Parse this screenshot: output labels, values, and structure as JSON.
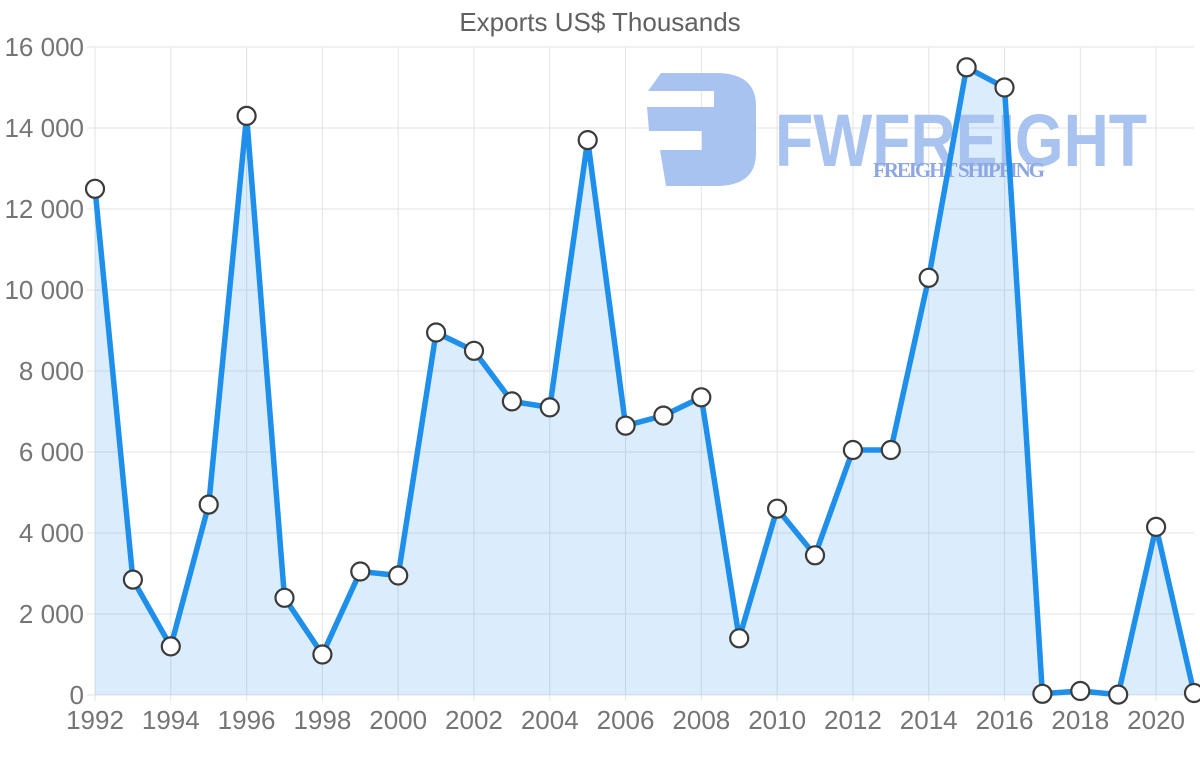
{
  "chart_data": {
    "type": "area",
    "title": "Exports US$ Thousands",
    "series_name": "Exports",
    "x": [
      1992,
      1993,
      1994,
      1995,
      1996,
      1997,
      1998,
      1999,
      2000,
      2001,
      2002,
      2003,
      2004,
      2005,
      2006,
      2007,
      2008,
      2009,
      2010,
      2011,
      2012,
      2013,
      2014,
      2015,
      2016,
      2017,
      2018,
      2019,
      2020,
      2021
    ],
    "values": [
      12500,
      2850,
      1200,
      4700,
      14300,
      2400,
      1000,
      3050,
      2950,
      8950,
      8500,
      7250,
      7100,
      13700,
      6650,
      6900,
      7350,
      1400,
      4600,
      3450,
      6050,
      6050,
      10300,
      15500,
      15000,
      30,
      100,
      10,
      4150,
      50
    ],
    "ylim": [
      0,
      16000
    ],
    "ytick_step": 2000,
    "ytick_labels": [
      "0",
      "2 000",
      "4 000",
      "6 000",
      "8 000",
      "10 000",
      "12 000",
      "14 000",
      "16 000"
    ],
    "xtick_years": [
      1992,
      1994,
      1996,
      1998,
      2000,
      2002,
      2004,
      2006,
      2008,
      2010,
      2012,
      2014,
      2016,
      2018,
      2020
    ],
    "xtick_labels": [
      "1992",
      "1994",
      "1996",
      "1998",
      "2000",
      "2002",
      "2004",
      "2006",
      "2008",
      "2010",
      "2012",
      "2014",
      "2016",
      "2018",
      "2020"
    ],
    "grid": true,
    "legend": "none",
    "marker": "circle"
  },
  "watermark": {
    "brand": "FWFREIGHT",
    "tagline": "FREIGHT SHIPPING"
  },
  "colors": {
    "line": "#1e8fea",
    "area_fill": "rgba(30,143,234,0.16)",
    "marker_fill": "#ffffff",
    "marker_stroke": "#3b3b3b",
    "grid": "#e3e3e3",
    "axis_label": "#757575",
    "title": "#616161",
    "watermark_glyph": "#a9c3f1",
    "watermark_brand": "#a9c3f1",
    "watermark_tagline": "#8ea7e2"
  }
}
